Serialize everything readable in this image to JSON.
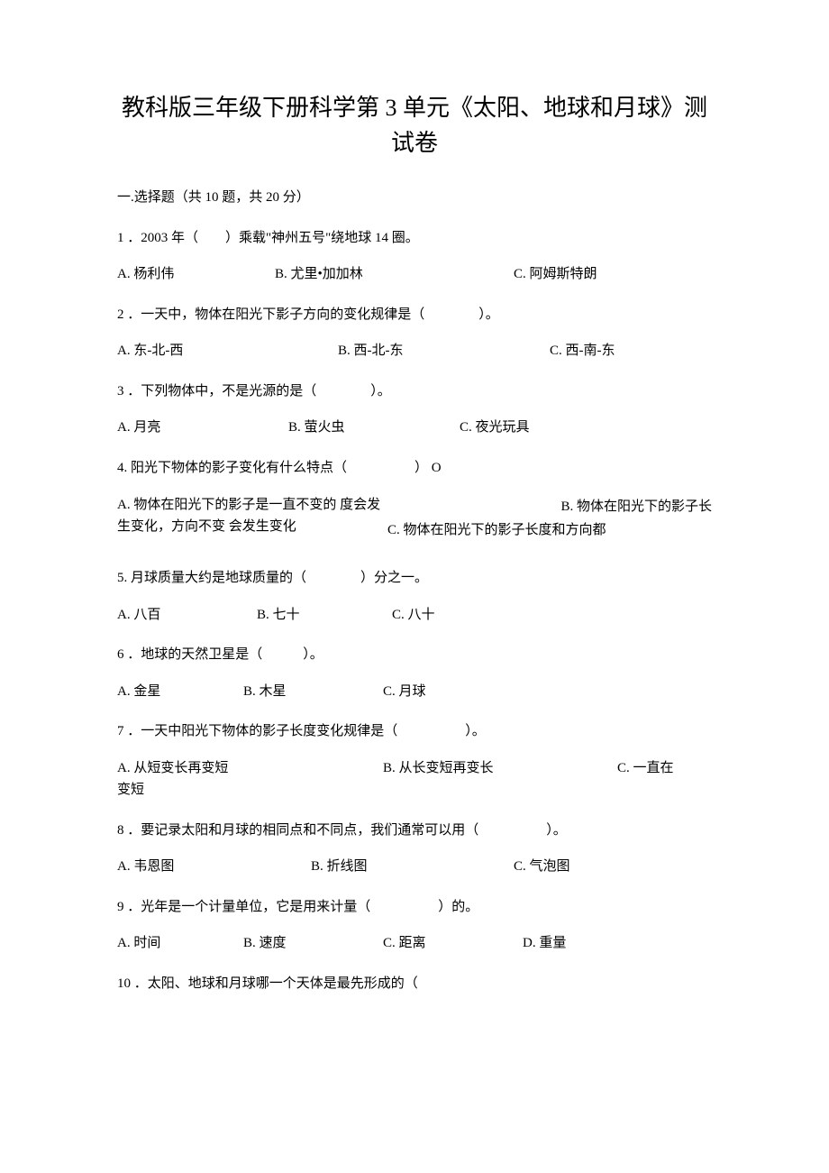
{
  "title": "教科版三年级下册科学第 3 单元《太阳、地球和月球》测试卷",
  "section1": {
    "header": "一.选择题（共 10 题，共 20 分）"
  },
  "q1": {
    "stem": "1 ．2003 年（　　）乘载\"神州五号\"绕地球 14 圈。",
    "a": "A. 杨利伟",
    "b": "B. 尤里•加加林",
    "c": "C. 阿姆斯特朗"
  },
  "q2": {
    "stem": "2 ．一天中，物体在阳光下影子方向的变化规律是（　　　　）。",
    "a": "A. 东-北-西",
    "b": "B. 西-北-东",
    "c": "C. 西-南-东"
  },
  "q3": {
    "stem": "3 ．下列物体中，不是光源的是（　　　　）。",
    "a": "A. 月亮",
    "b": "B. 萤火虫",
    "c": "C. 夜光玩具"
  },
  "q4": {
    "stem": "4. 阳光下物体的影子变化有什么特点（　　　　　） O",
    "a": "A. 物体在阳光下的影子是一直不变的 度会发生变化，方向不变 会发生变化",
    "b": "B. 物体在阳光下的影子长",
    "c": "C. 物体在阳光下的影子长度和方向都"
  },
  "q5": {
    "stem": "5. 月球质量大约是地球质量的（　　　　）分之一。",
    "a": "A. 八百",
    "b": "B. 七十",
    "c": "C. 八十"
  },
  "q6": {
    "stem": "6 ．地球的天然卫星是（　　　）。",
    "a": "A. 金星",
    "b": "B. 木星",
    "c": "C. 月球"
  },
  "q7": {
    "stem": "7 ．一天中阳光下物体的影子长度变化规律是（　　　　　）。",
    "a": "A. 从短变长再变短",
    "b": "B. 从长变短再变长",
    "c": "C. 一直在",
    "cont": "变短"
  },
  "q8": {
    "stem": "8 ．要记录太阳和月球的相同点和不同点，我们通常可以用（　　　　　）。",
    "a": "A. 韦恩图",
    "b": "B. 折线图",
    "c": "C. 气泡图"
  },
  "q9": {
    "stem": "9 ．光年是一个计量单位，它是用来计量（　　　　　）的。",
    "a": "A. 时间",
    "b": "B. 速度",
    "c": "C. 距离",
    "d": "D. 重量"
  },
  "q10": {
    "stem": "10 ．太阳、地球和月球哪一个天体是最先形成的（"
  }
}
